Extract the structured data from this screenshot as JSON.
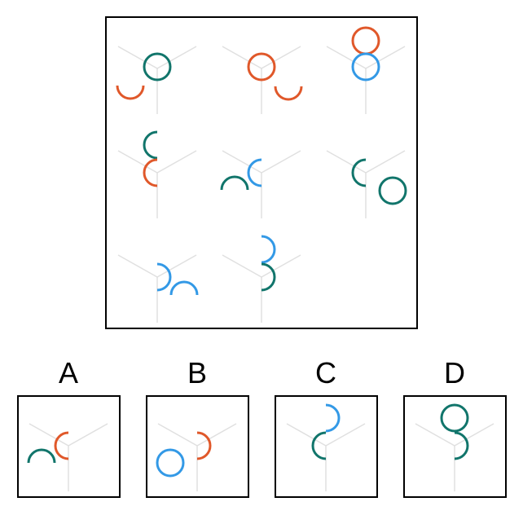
{
  "colors": {
    "teal": "#11756b",
    "orange": "#e0582a",
    "blue": "#3399e6",
    "frame": "#000000",
    "guide": "#e0e0e0"
  },
  "grid": {
    "cells": [
      {
        "row": 0,
        "col": 0,
        "shapes": [
          {
            "kind": "circle",
            "color": "teal",
            "at": "center-up"
          },
          {
            "kind": "arc-bottom",
            "color": "orange",
            "at": "lower-left"
          }
        ]
      },
      {
        "row": 0,
        "col": 1,
        "shapes": [
          {
            "kind": "circle",
            "color": "orange",
            "at": "center-up"
          },
          {
            "kind": "arc-bottom",
            "color": "orange",
            "at": "lower-right"
          }
        ]
      },
      {
        "row": 0,
        "col": 2,
        "shapes": [
          {
            "kind": "circle",
            "color": "orange",
            "at": "top"
          },
          {
            "kind": "circle",
            "color": "blue",
            "at": "center-up"
          }
        ]
      },
      {
        "row": 1,
        "col": 0,
        "shapes": [
          {
            "kind": "arc-left",
            "color": "teal",
            "at": "top"
          },
          {
            "kind": "arc-left",
            "color": "orange",
            "at": "center"
          }
        ]
      },
      {
        "row": 1,
        "col": 1,
        "shapes": [
          {
            "kind": "arc-left",
            "color": "blue",
            "at": "center"
          },
          {
            "kind": "arc-top",
            "color": "teal",
            "at": "lower-left"
          }
        ]
      },
      {
        "row": 1,
        "col": 2,
        "shapes": [
          {
            "kind": "arc-left",
            "color": "teal",
            "at": "center"
          },
          {
            "kind": "circle",
            "color": "teal",
            "at": "lower-right"
          }
        ]
      },
      {
        "row": 2,
        "col": 0,
        "shapes": [
          {
            "kind": "arc-right",
            "color": "blue",
            "at": "center"
          },
          {
            "kind": "arc-top",
            "color": "blue",
            "at": "lower-right"
          }
        ]
      },
      {
        "row": 2,
        "col": 1,
        "shapes": [
          {
            "kind": "arc-right",
            "color": "blue",
            "at": "top"
          },
          {
            "kind": "arc-right",
            "color": "teal",
            "at": "center"
          }
        ]
      }
    ]
  },
  "options": [
    {
      "label": "A",
      "shapes": [
        {
          "kind": "arc-left",
          "color": "orange",
          "at": "center"
        },
        {
          "kind": "arc-top",
          "color": "teal",
          "at": "lower-left"
        }
      ]
    },
    {
      "label": "B",
      "shapes": [
        {
          "kind": "arc-right",
          "color": "orange",
          "at": "center"
        },
        {
          "kind": "circle",
          "color": "blue",
          "at": "lower-left"
        }
      ]
    },
    {
      "label": "C",
      "shapes": [
        {
          "kind": "arc-right",
          "color": "blue",
          "at": "top"
        },
        {
          "kind": "arc-left",
          "color": "teal",
          "at": "center"
        }
      ]
    },
    {
      "label": "D",
      "shapes": [
        {
          "kind": "circle",
          "color": "teal",
          "at": "top"
        },
        {
          "kind": "arc-right",
          "color": "teal",
          "at": "center"
        }
      ]
    }
  ]
}
